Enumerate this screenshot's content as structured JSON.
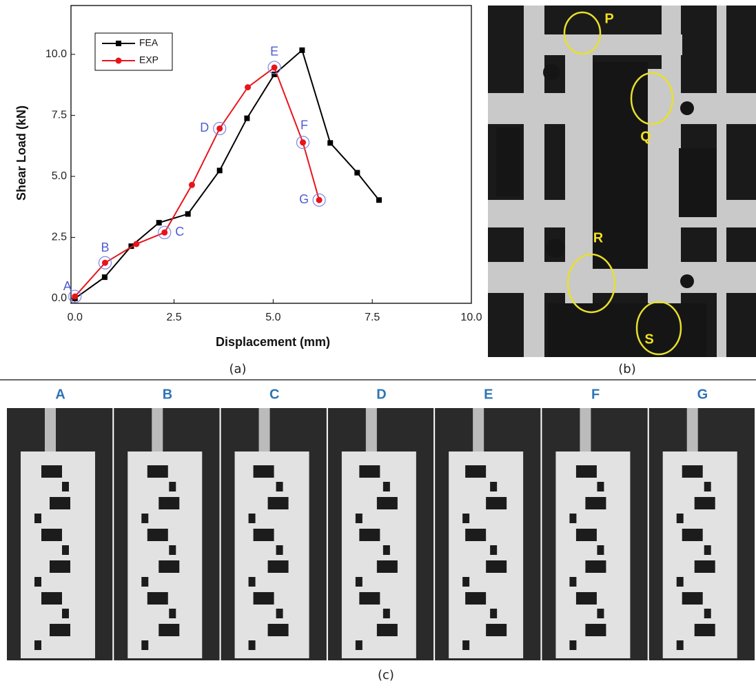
{
  "chart_data": {
    "type": "line",
    "x_label": "Displacement (mm)",
    "y_label": "Shear Load (kN)",
    "xlim": [
      -0.1,
      10
    ],
    "ylim": [
      -0.2,
      12
    ],
    "xticks": [
      {
        "value": 0,
        "label": "0.0"
      },
      {
        "value": 2.5,
        "label": "2.5"
      },
      {
        "value": 5,
        "label": "5.0"
      },
      {
        "value": 7.5,
        "label": "7.5"
      },
      {
        "value": 10,
        "label": "10.0"
      }
    ],
    "yticks": [
      {
        "value": 0,
        "label": "0.0"
      },
      {
        "value": 2.5,
        "label": "2.5"
      },
      {
        "value": 5,
        "label": "5.0"
      },
      {
        "value": 7.5,
        "label": "7.5"
      },
      {
        "value": 10,
        "label": "10.0"
      }
    ],
    "legend": "upper left",
    "series": [
      {
        "name": "FEA",
        "color": "#000000",
        "marker": "square",
        "x": [
          0,
          0.75,
          1.42,
          2.12,
          2.85,
          3.65,
          4.34,
          5.03,
          5.73,
          6.44,
          7.12,
          7.67
        ],
        "values": [
          0.0,
          0.87,
          2.14,
          3.1,
          3.46,
          5.24,
          7.38,
          9.18,
          10.17,
          6.37,
          5.15,
          4.03
        ]
      },
      {
        "name": "EXP",
        "color": "#e8141b",
        "marker": "circle",
        "x": [
          0,
          0.76,
          1.55,
          2.26,
          2.95,
          3.65,
          4.36,
          5.03,
          5.75,
          6.16
        ],
        "values": [
          0.08,
          1.46,
          2.23,
          2.7,
          4.65,
          6.96,
          8.65,
          9.46,
          6.39,
          4.03
        ]
      }
    ],
    "annotations": [
      {
        "text": "A",
        "x": 0,
        "y": 0.08
      },
      {
        "text": "B",
        "x": 0.76,
        "y": 1.46
      },
      {
        "text": "C",
        "x": 2.26,
        "y": 2.7
      },
      {
        "text": "D",
        "x": 3.65,
        "y": 6.96
      },
      {
        "text": "E",
        "x": 5.03,
        "y": 9.46
      },
      {
        "text": "F",
        "x": 5.75,
        "y": 6.39
      },
      {
        "text": "G",
        "x": 6.16,
        "y": 4.03
      }
    ]
  },
  "panels": {
    "a": "(a)",
    "b": "(b)",
    "c": "(c)"
  },
  "photo_b": {
    "labels": [
      "P",
      "Q",
      "R",
      "S"
    ]
  },
  "photo_c": {
    "frames": [
      "A",
      "B",
      "C",
      "D",
      "E",
      "F",
      "G"
    ]
  }
}
